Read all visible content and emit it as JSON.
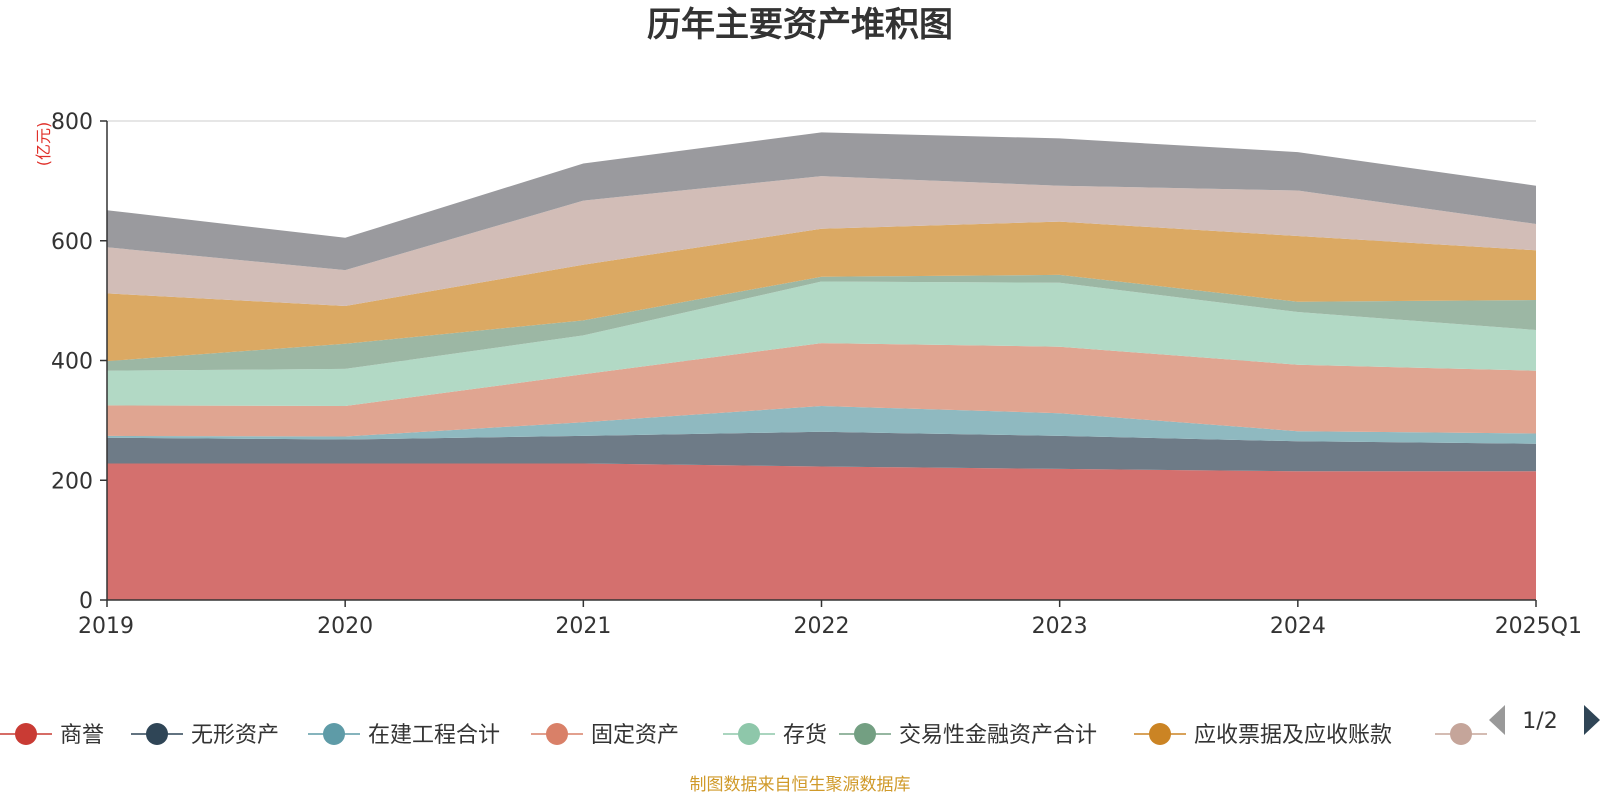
{
  "chart_data": {
    "type": "area",
    "stacked": true,
    "title": "历年主要资产堆积图",
    "ylabel": "(亿元)",
    "xlabel": "",
    "categories": [
      "2019",
      "2020",
      "2021",
      "2022",
      "2023",
      "2024",
      "2025Q1"
    ],
    "ylim": [
      0,
      800
    ],
    "yticks": [
      0,
      200,
      400,
      600,
      800
    ],
    "grid": true,
    "legend_position": "bottom",
    "series": [
      {
        "name": "商誉",
        "color": "#d4706e",
        "values": [
          228,
          228,
          228,
          223,
          219,
          215,
          215
        ]
      },
      {
        "name": "无形资产",
        "color": "#6e7b87",
        "values": [
          43,
          40,
          46,
          58,
          55,
          50,
          46
        ]
      },
      {
        "name": "在建工程合计",
        "color": "#8fb9c0",
        "values": [
          3,
          5,
          23,
          43,
          38,
          17,
          17
        ]
      },
      {
        "name": "固定资产",
        "color": "#e0a591",
        "values": [
          51,
          51,
          80,
          105,
          111,
          111,
          105
        ]
      },
      {
        "name": "存货",
        "color": "#b2d9c5",
        "values": [
          58,
          62,
          65,
          103,
          107,
          88,
          68
        ]
      },
      {
        "name": "交易性金融资产合计",
        "color": "#9cb7a4",
        "values": [
          16,
          42,
          25,
          8,
          13,
          17,
          50
        ]
      },
      {
        "name": "应收票据及应收账款",
        "color": "#dba963",
        "values": [
          113,
          63,
          93,
          80,
          89,
          110,
          83
        ]
      },
      {
        "name": "",
        "color": "#d2bdb7",
        "values": [
          77,
          60,
          107,
          88,
          60,
          76,
          44
        ]
      },
      {
        "name": "",
        "color": "#9a9a9e",
        "values": [
          62,
          54,
          62,
          73,
          79,
          64,
          64
        ]
      }
    ]
  },
  "legend": {
    "items": [
      {
        "label": "商誉",
        "color": "#c93b34"
      },
      {
        "label": "无形资产",
        "color": "#2f4556"
      },
      {
        "label": "在建工程合计",
        "color": "#5e9ba7"
      },
      {
        "label": "固定资产",
        "color": "#d98068"
      },
      {
        "label": "存货",
        "color": "#8ec7aa"
      },
      {
        "label": "交易性金融资产合计",
        "color": "#739f82"
      },
      {
        "label": "应收票据及应收账款",
        "color": "#cb8424"
      },
      {
        "label": "",
        "color": "#c5a59a"
      }
    ],
    "page_text": "1/2"
  },
  "source_note": "制图数据来自恒生聚源数据库"
}
